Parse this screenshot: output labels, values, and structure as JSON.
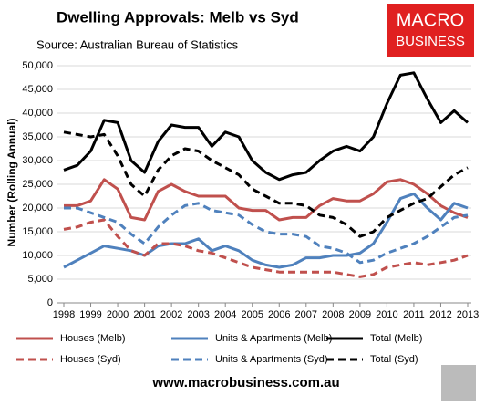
{
  "chart_data": {
    "type": "line",
    "title": "Dwelling Approvals: Melb vs Syd",
    "subtitle": "Source: Australian Bureau of Statistics",
    "y_label": "Number (Rolling Annual)",
    "x": [
      1998,
      1998.5,
      1999,
      1999.5,
      2000,
      2000.5,
      2001,
      2001.5,
      2002,
      2002.5,
      2003,
      2003.5,
      2004,
      2004.5,
      2005,
      2005.5,
      2006,
      2006.5,
      2007,
      2007.5,
      2008,
      2008.5,
      2009,
      2009.5,
      2010,
      2010.5,
      2011,
      2011.5,
      2012,
      2012.5,
      2013
    ],
    "xlim": [
      1998,
      2013
    ],
    "xticks": [
      1998,
      1999,
      2000,
      2001,
      2002,
      2003,
      2004,
      2005,
      2006,
      2007,
      2008,
      2009,
      2010,
      2011,
      2012,
      2013
    ],
    "ylim": [
      0,
      50000
    ],
    "yticks": [
      0,
      {
        "value": 5000,
        "label": "5,000"
      },
      {
        "value": 10000,
        "label": "10,000"
      },
      {
        "value": 15000,
        "label": "15,000"
      },
      {
        "value": 20000,
        "label": "20,000"
      },
      {
        "value": 25000,
        "label": "25,000"
      },
      {
        "value": 30000,
        "label": "30,000"
      },
      {
        "value": 35000,
        "label": "35,000"
      },
      {
        "value": 40000,
        "label": "40,000"
      },
      {
        "value": 45000,
        "label": "45,000"
      },
      {
        "value": 50000,
        "label": "50,000"
      }
    ],
    "grid": true,
    "series": [
      {
        "name": "Houses (Melb)",
        "color": "#c0504d",
        "line_style": "solid",
        "values": [
          20500,
          20500,
          21500,
          26000,
          24000,
          18000,
          17500,
          23500,
          25000,
          23500,
          22500,
          22500,
          22500,
          20000,
          19500,
          19500,
          17500,
          18000,
          18000,
          20500,
          22000,
          21500,
          21500,
          23000,
          25500,
          26000,
          25000,
          23000,
          20500,
          19000,
          18000
        ]
      },
      {
        "name": "Units & Apartments (Melb)",
        "color": "#4f81bd",
        "line_style": "solid",
        "values": [
          7500,
          9000,
          10500,
          12000,
          11500,
          11000,
          10000,
          12000,
          12500,
          12500,
          13500,
          11000,
          12000,
          11000,
          9000,
          8000,
          7500,
          8000,
          9500,
          9500,
          10000,
          10000,
          10500,
          12500,
          17000,
          22000,
          23000,
          20000,
          17500,
          21000,
          20000
        ]
      },
      {
        "name": "Total (Melb)",
        "color": "#000000",
        "line_style": "solid",
        "values": [
          28000,
          29000,
          32000,
          38500,
          38000,
          30000,
          27500,
          34000,
          37500,
          37000,
          37000,
          33000,
          36000,
          35000,
          30000,
          27500,
          26000,
          27000,
          27500,
          30000,
          32000,
          33000,
          32000,
          35000,
          42000,
          48000,
          48500,
          43000,
          38000,
          40500,
          38000
        ]
      },
      {
        "name": "Houses (Syd)",
        "color": "#c0504d",
        "line_style": "dashed",
        "values": [
          15500,
          16000,
          17000,
          17500,
          14000,
          11000,
          10000,
          12500,
          12500,
          12000,
          11000,
          10500,
          9500,
          8500,
          7500,
          7000,
          6500,
          6500,
          6500,
          6500,
          6500,
          6000,
          5500,
          6000,
          7500,
          8000,
          8500,
          8000,
          8500,
          9000,
          10000
        ]
      },
      {
        "name": "Units & Apartments (Syd)",
        "color": "#4f81bd",
        "line_style": "dashed",
        "values": [
          20000,
          20000,
          19000,
          18000,
          17000,
          14500,
          12500,
          16000,
          18500,
          20500,
          21000,
          19500,
          19000,
          18500,
          16500,
          15000,
          14500,
          14500,
          14000,
          12000,
          11500,
          10500,
          8500,
          9000,
          10500,
          11500,
          12500,
          14000,
          16000,
          18000,
          18500
        ]
      },
      {
        "name": "Total (Syd)",
        "color": "#000000",
        "line_style": "dashed",
        "values": [
          36000,
          35500,
          35000,
          35500,
          31000,
          25000,
          22500,
          28000,
          31000,
          32500,
          32000,
          30000,
          28500,
          27000,
          24000,
          22500,
          21000,
          21000,
          20500,
          18500,
          18000,
          16500,
          14000,
          15000,
          18000,
          19500,
          21000,
          22000,
          24500,
          27000,
          28500
        ]
      }
    ]
  },
  "logo": {
    "line1": "MACRO",
    "line2": "BUSINESS"
  },
  "footer": "www.macrobusiness.com.au"
}
